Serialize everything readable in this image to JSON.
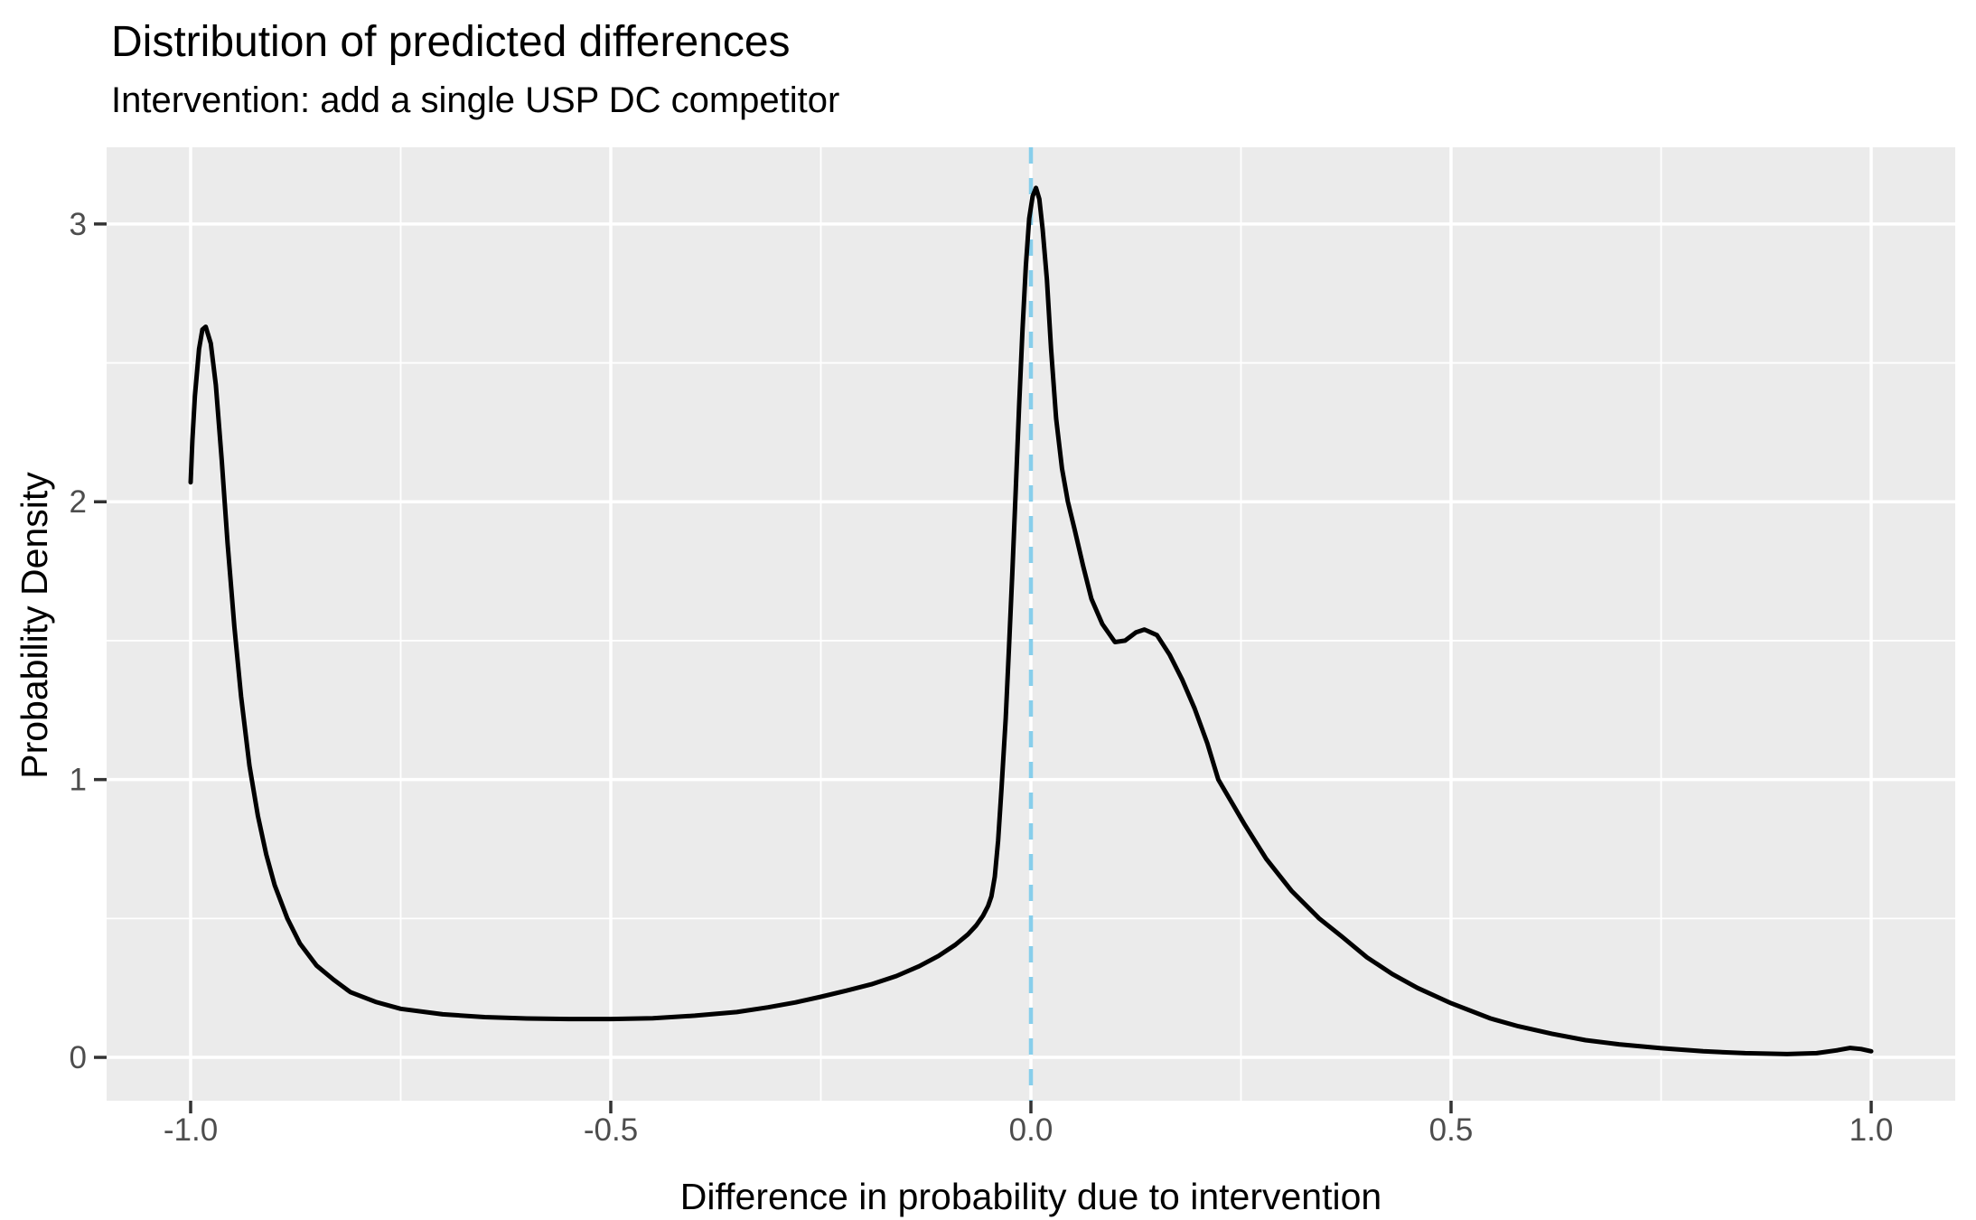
{
  "title": "Distribution of predicted differences",
  "subtitle": "Intervention: add a single USP DC competitor",
  "chart_data": {
    "type": "line",
    "title": "Distribution of predicted differences",
    "subtitle": "Intervention: add a single USP DC competitor",
    "xlabel": "Difference in probability due to intervention",
    "ylabel": "Probability Density",
    "x_ticks": [
      -1.0,
      -0.5,
      0.0,
      0.5,
      1.0
    ],
    "x_tick_labels": [
      "-1.0",
      "-0.5",
      "0.0",
      "0.5",
      "1.0"
    ],
    "y_ticks": [
      0,
      1,
      2,
      3
    ],
    "y_tick_labels": [
      "0",
      "1",
      "2",
      "3"
    ],
    "x_minor_gridlines": [
      -0.75,
      -0.25,
      0.25,
      0.75
    ],
    "y_minor_gridlines": [
      0.5,
      1.5,
      2.5
    ],
    "xlim": [
      -1.1,
      1.1
    ],
    "ylim": [
      -0.156,
      3.276
    ],
    "grid": "white major and minor gridlines on grey panel",
    "legend": "none",
    "panel_bg": "#EBEBEB",
    "gridline_color": "#FFFFFF",
    "tick_mark_color": "#333333",
    "tick_label_color": "#4D4D4D",
    "reference_line": {
      "x": 0.0,
      "style": "dashed",
      "color": "#87CEEB",
      "orientation": "vertical"
    },
    "series": [
      {
        "name": "density",
        "color": "#000000",
        "stroke_width": 5,
        "points": [
          [
            -1.0,
            2.07
          ],
          [
            -0.998,
            2.22
          ],
          [
            -0.995,
            2.38
          ],
          [
            -0.99,
            2.55
          ],
          [
            -0.986,
            2.62
          ],
          [
            -0.982,
            2.63
          ],
          [
            -0.976,
            2.57
          ],
          [
            -0.97,
            2.42
          ],
          [
            -0.963,
            2.15
          ],
          [
            -0.956,
            1.85
          ],
          [
            -0.948,
            1.55
          ],
          [
            -0.94,
            1.3
          ],
          [
            -0.93,
            1.05
          ],
          [
            -0.92,
            0.87
          ],
          [
            -0.91,
            0.73
          ],
          [
            -0.9,
            0.62
          ],
          [
            -0.885,
            0.5
          ],
          [
            -0.87,
            0.41
          ],
          [
            -0.85,
            0.33
          ],
          [
            -0.83,
            0.28
          ],
          [
            -0.81,
            0.235
          ],
          [
            -0.78,
            0.2
          ],
          [
            -0.75,
            0.175
          ],
          [
            -0.7,
            0.155
          ],
          [
            -0.65,
            0.145
          ],
          [
            -0.6,
            0.14
          ],
          [
            -0.55,
            0.138
          ],
          [
            -0.5,
            0.138
          ],
          [
            -0.45,
            0.141
          ],
          [
            -0.4,
            0.15
          ],
          [
            -0.35,
            0.163
          ],
          [
            -0.313,
            0.18
          ],
          [
            -0.28,
            0.198
          ],
          [
            -0.25,
            0.218
          ],
          [
            -0.22,
            0.24
          ],
          [
            -0.19,
            0.263
          ],
          [
            -0.16,
            0.293
          ],
          [
            -0.133,
            0.328
          ],
          [
            -0.11,
            0.365
          ],
          [
            -0.09,
            0.405
          ],
          [
            -0.075,
            0.443
          ],
          [
            -0.065,
            0.475
          ],
          [
            -0.057,
            0.51
          ],
          [
            -0.051,
            0.545
          ],
          [
            -0.047,
            0.58
          ],
          [
            -0.043,
            0.65
          ],
          [
            -0.039,
            0.78
          ],
          [
            -0.035,
            0.97
          ],
          [
            -0.03,
            1.22
          ],
          [
            -0.026,
            1.48
          ],
          [
            -0.022,
            1.75
          ],
          [
            -0.018,
            2.05
          ],
          [
            -0.014,
            2.35
          ],
          [
            -0.01,
            2.62
          ],
          [
            -0.006,
            2.85
          ],
          [
            -0.002,
            3.02
          ],
          [
            0.002,
            3.1
          ],
          [
            0.006,
            3.13
          ],
          [
            0.01,
            3.09
          ],
          [
            0.014,
            2.98
          ],
          [
            0.019,
            2.8
          ],
          [
            0.024,
            2.55
          ],
          [
            0.03,
            2.3
          ],
          [
            0.037,
            2.12
          ],
          [
            0.044,
            2.0
          ],
          [
            0.052,
            1.9
          ],
          [
            0.062,
            1.77
          ],
          [
            0.072,
            1.65
          ],
          [
            0.085,
            1.56
          ],
          [
            0.1,
            1.495
          ],
          [
            0.112,
            1.5
          ],
          [
            0.125,
            1.53
          ],
          [
            0.135,
            1.54
          ],
          [
            0.15,
            1.52
          ],
          [
            0.165,
            1.45
          ],
          [
            0.18,
            1.36
          ],
          [
            0.195,
            1.255
          ],
          [
            0.21,
            1.13
          ],
          [
            0.223,
            1.0
          ],
          [
            0.254,
            0.84
          ],
          [
            0.28,
            0.715
          ],
          [
            0.31,
            0.6
          ],
          [
            0.343,
            0.5
          ],
          [
            0.37,
            0.435
          ],
          [
            0.4,
            0.36
          ],
          [
            0.43,
            0.3
          ],
          [
            0.46,
            0.25
          ],
          [
            0.5,
            0.195
          ],
          [
            0.547,
            0.14
          ],
          [
            0.58,
            0.112
          ],
          [
            0.62,
            0.085
          ],
          [
            0.66,
            0.062
          ],
          [
            0.7,
            0.047
          ],
          [
            0.75,
            0.033
          ],
          [
            0.8,
            0.022
          ],
          [
            0.85,
            0.015
          ],
          [
            0.9,
            0.012
          ],
          [
            0.935,
            0.015
          ],
          [
            0.96,
            0.026
          ],
          [
            0.975,
            0.034
          ],
          [
            0.988,
            0.03
          ],
          [
            1.0,
            0.022
          ]
        ]
      }
    ]
  }
}
